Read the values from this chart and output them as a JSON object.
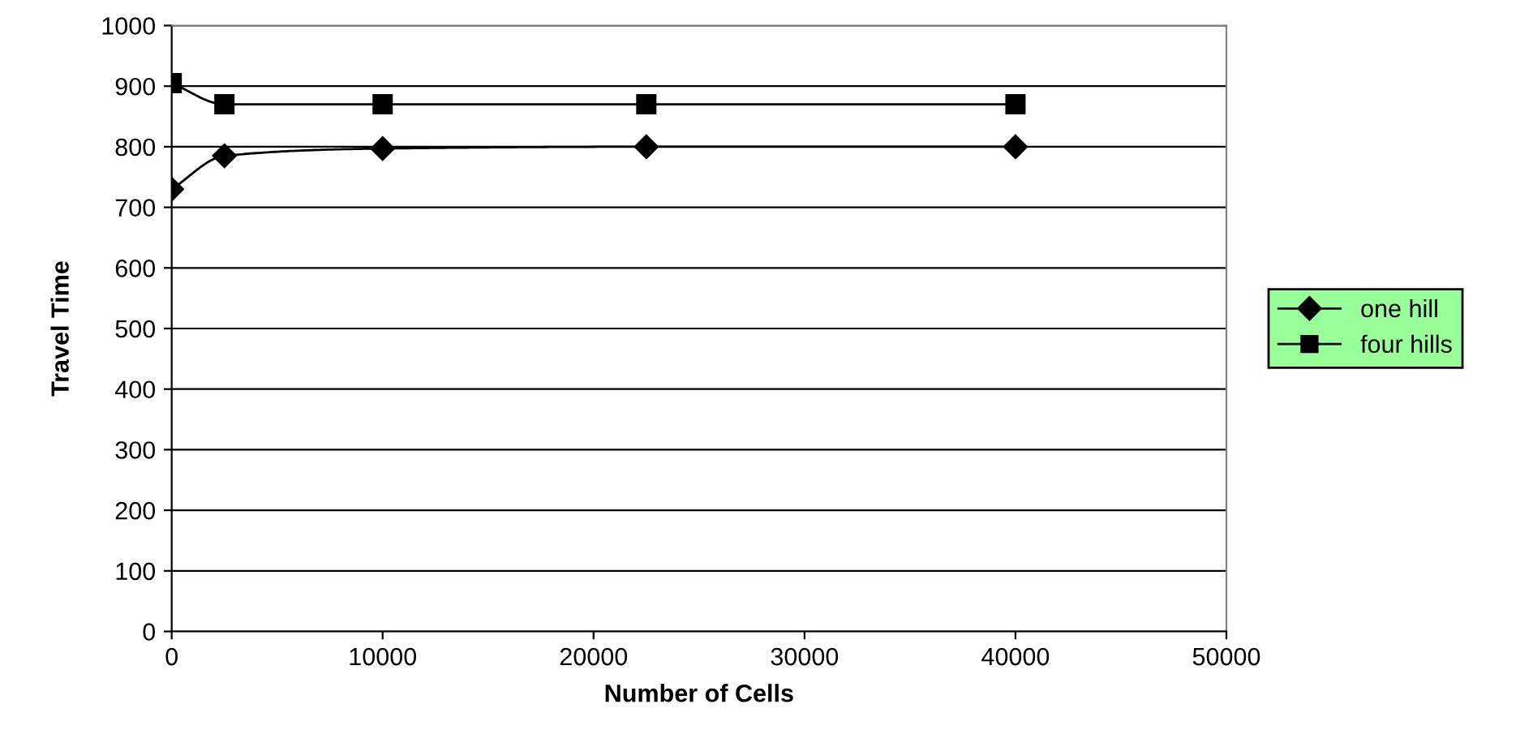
{
  "chart_data": {
    "type": "line",
    "xlabel": "Number of Cells",
    "ylabel": "Travel Time",
    "x": [
      0,
      2500,
      10000,
      22500,
      40000
    ],
    "series": [
      {
        "name": "one hill",
        "color": "#000000",
        "marker": "diamond",
        "values": [
          730,
          785,
          797,
          800,
          800
        ]
      },
      {
        "name": "four hills",
        "color": "#000000",
        "marker": "square",
        "values": [
          905,
          870,
          870,
          870,
          870
        ]
      }
    ],
    "xlim": [
      0,
      50000
    ],
    "xticks": [
      0,
      10000,
      20000,
      30000,
      40000,
      50000
    ],
    "ylim": [
      0,
      1000
    ],
    "yticks": [
      0,
      100,
      200,
      300,
      400,
      500,
      600,
      700,
      800,
      900,
      1000
    ],
    "grid": "y",
    "legend": "right",
    "line_style": "solid"
  }
}
